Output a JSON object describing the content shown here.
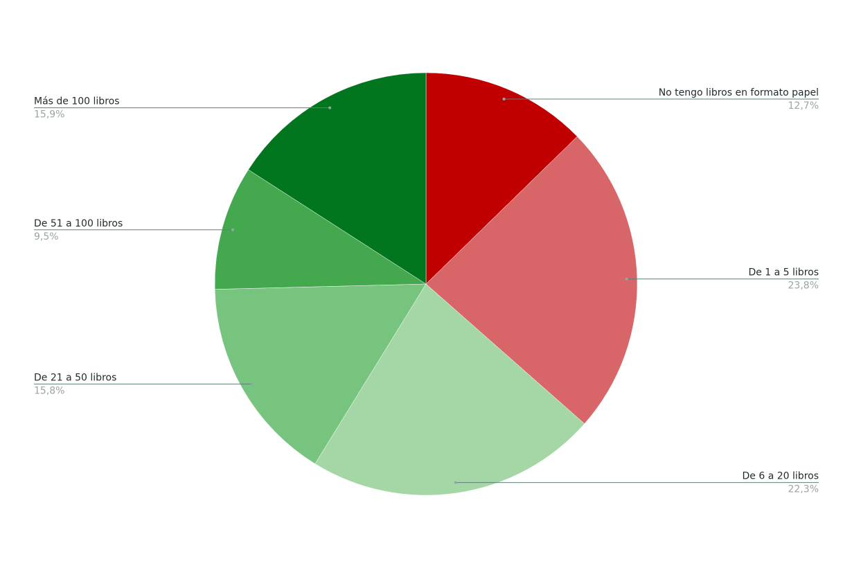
{
  "chart_data": {
    "type": "pie",
    "categories": [
      "No tengo libros en formato papel",
      "De 1 a 5 libros",
      "De 6 a 20 libros",
      "De 21 a 50 libros",
      "De 51 a 100 libros",
      "Más de 100 libros"
    ],
    "values": [
      12.7,
      23.8,
      22.3,
      15.8,
      9.5,
      15.9
    ],
    "value_labels": [
      "12,7%",
      "23,8%",
      "22,3%",
      "15,8%",
      "9,5%",
      "15,9%"
    ],
    "colors": [
      "#c00000",
      "#d86567",
      "#a5d7a6",
      "#77c47f",
      "#44a84f",
      "#02751f"
    ]
  }
}
